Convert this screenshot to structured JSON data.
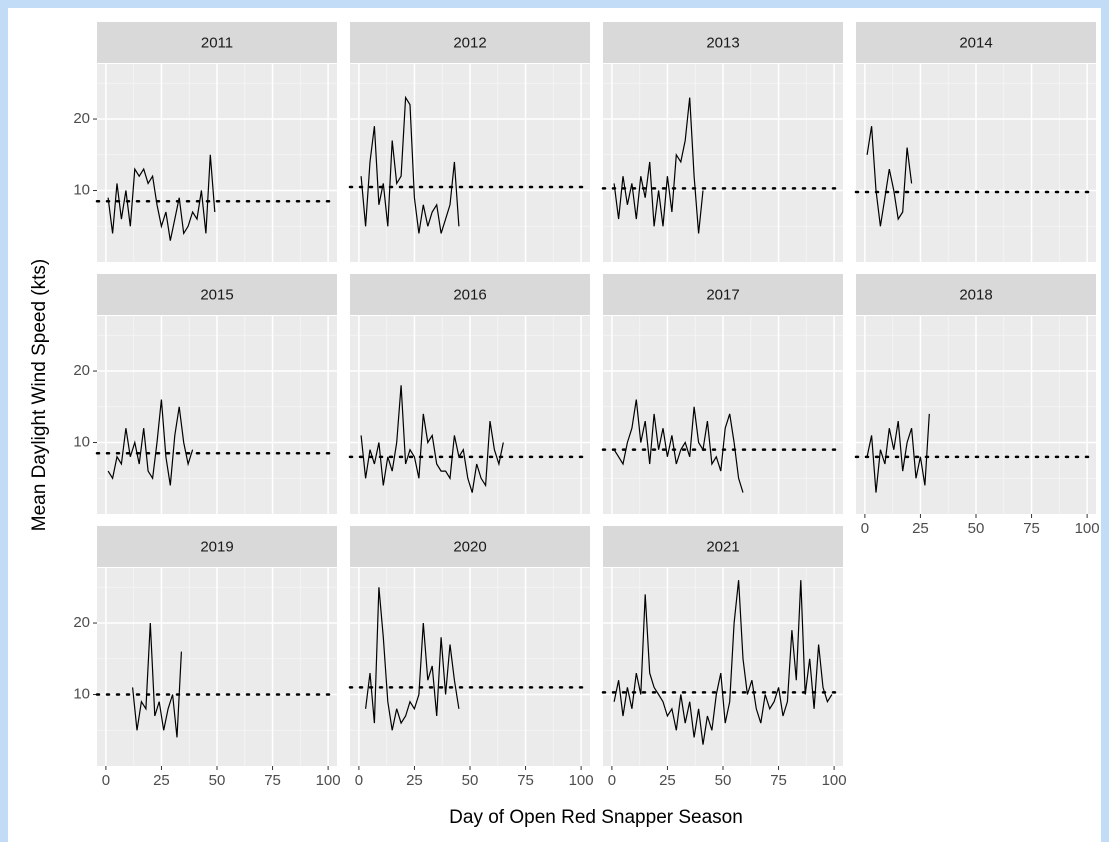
{
  "chart_data": {
    "type": "line",
    "xlabel": "Day of Open Red Snapper Season",
    "ylabel": "Mean Daylight Wind Speed (kts)",
    "xlim": [
      -4,
      104
    ],
    "xticks": [
      0,
      25,
      50,
      75,
      100
    ],
    "ylim": [
      0,
      27.7
    ],
    "yticks": [
      10,
      20
    ],
    "grid": true,
    "color": "#000000",
    "facets": [
      {
        "title": "2011",
        "mean": 8.5,
        "x": [
          1,
          3,
          5,
          7,
          9,
          11,
          13,
          15,
          17,
          19,
          21,
          23,
          25,
          27,
          29,
          31,
          33,
          35,
          37,
          39,
          41,
          43,
          45,
          47,
          49
        ],
        "values": [
          9,
          4,
          11,
          6,
          10,
          5,
          13,
          12,
          13,
          11,
          12,
          8,
          5,
          7,
          3,
          6,
          9,
          4,
          5,
          7,
          6,
          10,
          4,
          15,
          7
        ]
      },
      {
        "title": "2012",
        "mean": 10.5,
        "x": [
          1,
          3,
          5,
          7,
          9,
          11,
          13,
          15,
          17,
          19,
          21,
          23,
          25,
          27,
          29,
          31,
          33,
          35,
          37,
          39,
          41,
          43,
          45
        ],
        "values": [
          12,
          5,
          14,
          19,
          8,
          11,
          5,
          17,
          11,
          12,
          23,
          22,
          9,
          4,
          8,
          5,
          7,
          8,
          4,
          6,
          8,
          14,
          5
        ]
      },
      {
        "title": "2013",
        "mean": 10.3,
        "x": [
          1,
          3,
          5,
          7,
          9,
          11,
          13,
          15,
          17,
          19,
          21,
          23,
          25,
          27,
          29,
          31,
          33,
          35,
          37,
          39,
          41
        ],
        "values": [
          11,
          6,
          12,
          8,
          11,
          6,
          12,
          9,
          14,
          5,
          10,
          5,
          12,
          7,
          15,
          14,
          17,
          23,
          12,
          4,
          10
        ]
      },
      {
        "title": "2014",
        "mean": 9.8,
        "x": [
          1,
          3,
          5,
          7,
          9,
          11,
          13,
          15,
          17,
          19,
          21
        ],
        "values": [
          15,
          19,
          10,
          5,
          9,
          13,
          10,
          6,
          7,
          16,
          11
        ]
      },
      {
        "title": "2015",
        "mean": 8.5,
        "x": [
          1,
          3,
          5,
          7,
          9,
          11,
          13,
          15,
          17,
          19,
          21,
          23,
          25,
          27,
          29,
          31,
          33,
          35,
          37,
          39
        ],
        "values": [
          6,
          5,
          8,
          7,
          12,
          8,
          10,
          7,
          12,
          6,
          5,
          10,
          16,
          8,
          4,
          11,
          15,
          10,
          7,
          9
        ]
      },
      {
        "title": "2016",
        "mean": 8,
        "x": [
          1,
          3,
          5,
          7,
          9,
          11,
          13,
          15,
          17,
          19,
          21,
          23,
          25,
          27,
          29,
          31,
          33,
          35,
          37,
          39,
          41,
          43,
          45,
          47,
          49,
          51,
          53,
          55,
          57,
          59,
          61,
          63,
          65
        ],
        "values": [
          11,
          5,
          9,
          7,
          10,
          4,
          8,
          6,
          10,
          18,
          7,
          9,
          8,
          5,
          14,
          10,
          11,
          7,
          6,
          6,
          5,
          11,
          8,
          9,
          5,
          3,
          7,
          5,
          4,
          13,
          9,
          7,
          10
        ]
      },
      {
        "title": "2017",
        "mean": 9,
        "x": [
          1,
          3,
          5,
          7,
          9,
          11,
          13,
          15,
          17,
          19,
          21,
          23,
          25,
          27,
          29,
          31,
          33,
          35,
          37,
          39,
          41,
          43,
          45,
          47,
          49,
          51,
          53,
          55,
          57,
          59
        ],
        "values": [
          9,
          8,
          7,
          10,
          12,
          16,
          10,
          13,
          7,
          14,
          9,
          12,
          8,
          11,
          7,
          9,
          10,
          8,
          15,
          10,
          9,
          13,
          7,
          8,
          6,
          12,
          14,
          10,
          5,
          3
        ]
      },
      {
        "title": "2018",
        "mean": 8,
        "x": [
          1,
          3,
          5,
          7,
          9,
          11,
          13,
          15,
          17,
          19,
          21,
          23,
          25,
          27,
          29
        ],
        "values": [
          8,
          11,
          3,
          9,
          7,
          12,
          9,
          13,
          6,
          10,
          12,
          5,
          8,
          4,
          14
        ]
      },
      {
        "title": "2019",
        "mean": 10,
        "x": [
          12,
          14,
          16,
          18,
          20,
          22,
          24,
          26,
          28,
          30,
          32,
          34
        ],
        "values": [
          11,
          5,
          9,
          8,
          20,
          7,
          9,
          5,
          8,
          10,
          4,
          16
        ]
      },
      {
        "title": "2020",
        "mean": 11,
        "x": [
          3,
          5,
          7,
          9,
          11,
          13,
          15,
          17,
          19,
          21,
          23,
          25,
          27,
          29,
          31,
          33,
          35,
          37,
          39,
          41,
          43,
          45
        ],
        "values": [
          8,
          13,
          6,
          25,
          18,
          9,
          5,
          8,
          6,
          7,
          9,
          8,
          10,
          20,
          12,
          14,
          7,
          18,
          10,
          17,
          12,
          8
        ]
      },
      {
        "title": "2021",
        "mean": 10.3,
        "x": [
          1,
          3,
          5,
          7,
          9,
          11,
          13,
          15,
          17,
          19,
          21,
          23,
          25,
          27,
          29,
          31,
          33,
          35,
          37,
          39,
          41,
          43,
          45,
          47,
          49,
          51,
          53,
          55,
          57,
          59,
          61,
          63,
          65,
          67,
          69,
          71,
          73,
          75,
          77,
          79,
          81,
          83,
          85,
          87,
          89,
          91,
          93,
          95,
          97,
          99
        ],
        "values": [
          9,
          12,
          7,
          11,
          8,
          13,
          10,
          24,
          13,
          11,
          10,
          9,
          7,
          8,
          5,
          10,
          6,
          9,
          4,
          8,
          3,
          7,
          5,
          10,
          13,
          6,
          9,
          20,
          26,
          15,
          10,
          12,
          8,
          6,
          10,
          8,
          9,
          11,
          7,
          9,
          19,
          12,
          26,
          10,
          15,
          8,
          17,
          11,
          9,
          10
        ]
      }
    ]
  }
}
